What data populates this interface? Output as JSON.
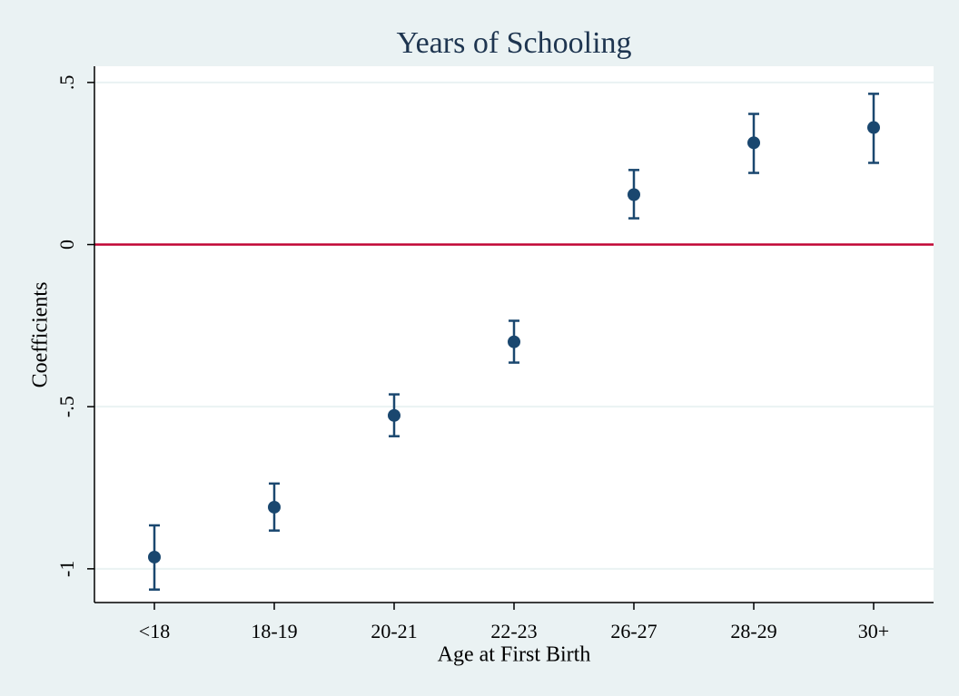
{
  "chart_data": {
    "type": "errorbar",
    "title": "Years of Schooling",
    "x_label": "Age at First Birth",
    "y_label": "Coefficients",
    "categories": [
      "<18",
      "18-19",
      "20-21",
      "22-23",
      "26-27",
      "28-29",
      "30+"
    ],
    "values": [
      -0.964,
      -0.81,
      -0.527,
      -0.3,
      0.154,
      0.314,
      0.361
    ],
    "lower": [
      -1.064,
      -0.882,
      -0.591,
      -0.364,
      0.081,
      0.221,
      0.252
    ],
    "upper": [
      -0.866,
      -0.737,
      -0.462,
      -0.235,
      0.23,
      0.403,
      0.465
    ],
    "color": "#1a476f",
    "ylim": [
      -1.104,
      0.55
    ],
    "yticks": [
      {
        "value": 0.5,
        "label": ".5"
      },
      0,
      {
        "value": -0.5,
        "label": "-.5"
      },
      -1
    ],
    "grid": true,
    "refline": 0,
    "refline_color": "#c10534"
  }
}
